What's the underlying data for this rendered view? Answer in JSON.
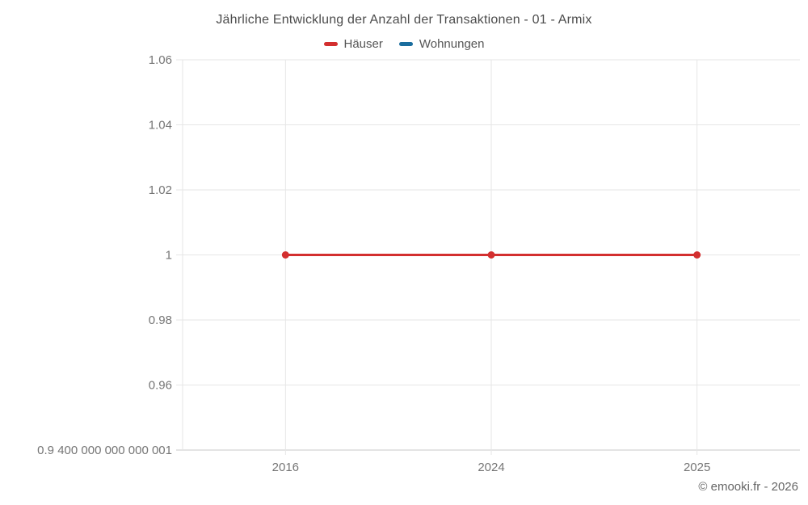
{
  "footer": "© emooki.fr - 2026",
  "colors": {
    "haeuser_red": "#d32f2f",
    "wohnungen_blue": "#1a6d9e",
    "grid": "#e6e6e6",
    "axis": "#c9c9c9",
    "tick_label": "#757575",
    "title_text": "#4c4c4c",
    "legend_text": "#555555",
    "footer_text": "#666666"
  },
  "chart_data": {
    "type": "line",
    "title": "Jährliche Entwicklung der Anzahl der Transaktionen - 01 - Armix",
    "categories": [
      "2016",
      "2024",
      "2025"
    ],
    "series": [
      {
        "name": "Häuser",
        "color": "#d32f2f",
        "values": [
          1,
          1,
          1
        ],
        "visible": true
      },
      {
        "name": "Wohnungen",
        "color": "#1a6d9e",
        "values": [],
        "visible": false
      }
    ],
    "ylim": [
      0.9400000000000001,
      1.06
    ],
    "ytick_values": [
      1.06,
      1.04,
      1.02,
      1.0,
      0.98,
      0.96,
      0.9400000000000001
    ],
    "ytick_labels": [
      "1.06",
      "1.04",
      "1.02",
      "1",
      "0.98",
      "0.96",
      "0.9 400 000 000 000 001"
    ],
    "xlabel": "",
    "ylabel": "",
    "grid": true,
    "legend_position": "top",
    "line_width": 3,
    "point_radius": 4.5
  }
}
